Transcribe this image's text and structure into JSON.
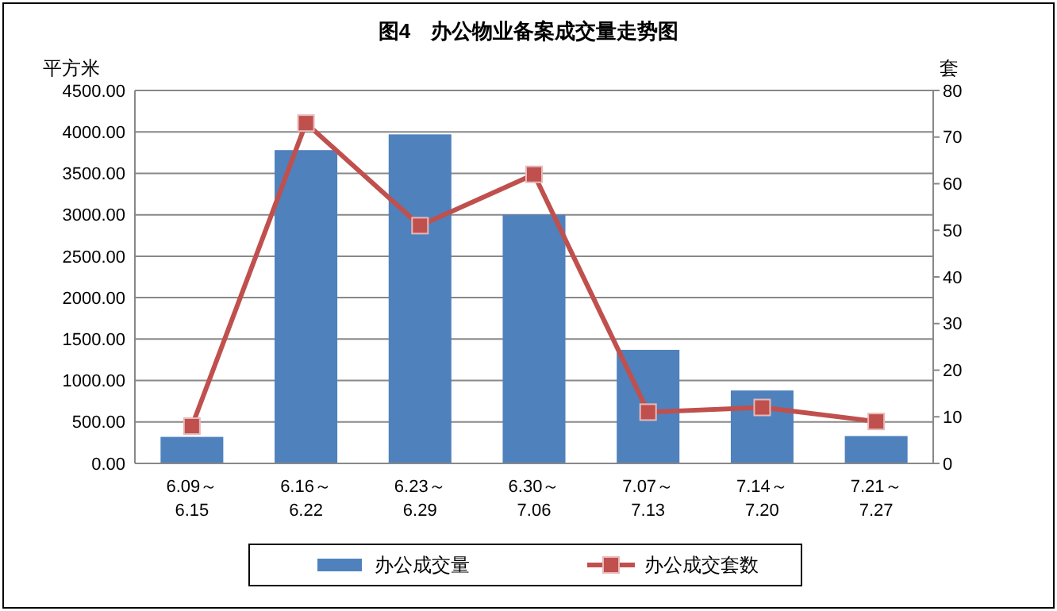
{
  "chart_data": {
    "type": "bar",
    "title": "图4　办公物业备案成交量走势图",
    "ylabel": "平方米",
    "y2label": "套",
    "categories": [
      "6.09～\n6.15",
      "6.16～\n6.22",
      "6.23～\n6.29",
      "6.30～\n7.06",
      "7.07～\n7.13",
      "7.14～\n7.20",
      "7.21～\n7.27"
    ],
    "series": [
      {
        "name": "办公成交量",
        "color": "#4f81bd",
        "values": [
          320,
          3780,
          3970,
          3000,
          1370,
          880,
          330
        ]
      },
      {
        "name": "办公成交套数",
        "type": "line",
        "axis": "y2",
        "color": "#c0504d",
        "marker": "square",
        "values": [
          8,
          73,
          51,
          62,
          11,
          12,
          9
        ]
      }
    ],
    "ylim": [
      0,
      4500
    ],
    "yticks": [
      {
        "value": 0,
        "label": "0.00"
      },
      {
        "value": 500,
        "label": "500.00"
      },
      {
        "value": 1000,
        "label": "1000.00"
      },
      {
        "value": 1500,
        "label": "1500.00"
      },
      {
        "value": 2000,
        "label": "2000.00"
      },
      {
        "value": 2500,
        "label": "2500.00"
      },
      {
        "value": 3000,
        "label": "3000.00"
      },
      {
        "value": 3500,
        "label": "3500.00"
      },
      {
        "value": 4000,
        "label": "4000.00"
      },
      {
        "value": 4500,
        "label": "4500.00"
      }
    ],
    "y2lim": [
      0,
      80
    ],
    "y2ticks": [
      0,
      10,
      20,
      30,
      40,
      50,
      60,
      70,
      80
    ],
    "grid": "y",
    "legend": "bottom"
  }
}
